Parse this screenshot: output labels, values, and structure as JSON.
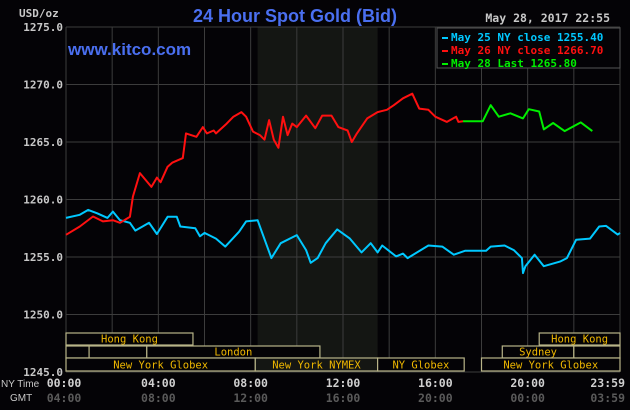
{
  "header": {
    "title": "24 Hour Spot Gold (Bid)",
    "watermark": "www.kitco.com",
    "timestamp": "May 28, 2017 22:55",
    "unit": "USD/oz"
  },
  "colors": {
    "background": "#040306",
    "title": "#4a6ff0",
    "grid": "#3c3c3c",
    "nymex_shade": "#141613",
    "session_border": "#b8b488",
    "session_text": "#f0b800",
    "axis_text": "#c8c8c8",
    "gmt_text": "#5a5a5a"
  },
  "sessions": [
    {
      "label": "Hong Kong",
      "row": 0,
      "start": 0,
      "end": 5.5
    },
    {
      "label": "",
      "row": 1,
      "start": 0,
      "end": 1
    },
    {
      "label": "",
      "row": 1,
      "start": 1,
      "end": 3.5
    },
    {
      "label": "London",
      "row": 1,
      "start": 3.5,
      "end": 11
    },
    {
      "label": "New York Globex",
      "row": 2,
      "start": 0,
      "end": 8.2
    },
    {
      "label": "New York NYMEX",
      "row": 2,
      "start": 8.2,
      "end": 13.5
    },
    {
      "label": "NY Globex",
      "row": 2,
      "start": 13.5,
      "end": 17.25
    },
    {
      "label": "Hong Kong",
      "row": 0,
      "start": 20.5,
      "end": 24
    },
    {
      "label": "Sydney",
      "row": 1,
      "start": 18.9,
      "end": 22
    },
    {
      "label": "",
      "row": 1,
      "start": 22,
      "end": 24
    },
    {
      "label": "New York Globex",
      "row": 2,
      "start": 18,
      "end": 24
    }
  ],
  "time_axis": {
    "ny_label": "NY Time",
    "gmt_label": "GMT",
    "ny_ticks": [
      "00:00",
      "04:00",
      "08:00",
      "12:00",
      "16:00",
      "20:00",
      "23:59"
    ],
    "gmt_ticks": [
      "04:00",
      "08:00",
      "12:00",
      "16:00",
      "20:00",
      "00:00",
      "03:59"
    ]
  },
  "chart_data": {
    "type": "line",
    "title": "24 Hour Spot Gold (Bid)",
    "ylabel": "USD/oz",
    "xlabel": "NY Time",
    "ylim": [
      1245,
      1275
    ],
    "xlim": [
      0,
      24
    ],
    "yticks": [
      "1275.0",
      "1270.0",
      "1265.0",
      "1260.0",
      "1255.0",
      "1250.0",
      "1245.0"
    ],
    "grid": true,
    "shaded_region": {
      "label": "New York NYMEX",
      "start_hour": 8.3,
      "end_hour": 13.5
    },
    "legend_position": "top-right",
    "series": [
      {
        "name": "May 25 NY close 1255.40",
        "color": "#00c8ff",
        "x": [
          0,
          0.6,
          0.96,
          1.35,
          1.8,
          2.03,
          2.34,
          2.77,
          3.0,
          3.6,
          3.94,
          4.4,
          4.8,
          4.95,
          5.6,
          5.8,
          6.0,
          6.5,
          6.9,
          7.5,
          7.8,
          8.3,
          8.9,
          9.3,
          10.0,
          10.4,
          10.6,
          10.9,
          11.25,
          11.75,
          12.3,
          12.8,
          13.2,
          13.5,
          13.7,
          14.3,
          14.6,
          14.8,
          15.7,
          16.3,
          16.8,
          17.3,
          18.2,
          18.4,
          19.0,
          19.4,
          19.75,
          19.8,
          19.9,
          20.3,
          20.7,
          21.4,
          21.7,
          22.1,
          22.7,
          23.1,
          23.4,
          23.9,
          24.0
        ],
        "y": [
          1258.4,
          1258.67,
          1259.1,
          1258.8,
          1258.4,
          1258.95,
          1258.2,
          1257.97,
          1257.3,
          1257.97,
          1257.0,
          1258.5,
          1258.5,
          1257.65,
          1257.5,
          1256.8,
          1257.1,
          1256.6,
          1255.9,
          1257.2,
          1258.1,
          1258.2,
          1254.9,
          1256.2,
          1256.9,
          1255.6,
          1254.5,
          1254.9,
          1256.2,
          1257.4,
          1256.6,
          1255.4,
          1256.2,
          1255.4,
          1256.0,
          1255.05,
          1255.3,
          1254.9,
          1256.0,
          1255.9,
          1255.2,
          1255.55,
          1255.55,
          1255.9,
          1256.0,
          1255.6,
          1254.9,
          1253.6,
          1254.2,
          1255.2,
          1254.2,
          1254.6,
          1254.9,
          1256.5,
          1256.6,
          1257.65,
          1257.7,
          1256.95,
          1257.1
        ]
      },
      {
        "name": "May 26 NY close 1266.70",
        "color": "#ff1010",
        "x": [
          0,
          0.6,
          1.17,
          1.6,
          2.03,
          2.34,
          2.77,
          2.9,
          3.2,
          3.7,
          3.94,
          4.1,
          4.4,
          4.6,
          5.06,
          5.2,
          5.65,
          5.93,
          6.1,
          6.4,
          6.5,
          6.96,
          7.25,
          7.6,
          7.8,
          8.1,
          8.4,
          8.6,
          8.8,
          9.0,
          9.2,
          9.4,
          9.6,
          9.8,
          10.0,
          10.4,
          10.8,
          11.1,
          11.5,
          11.8,
          12.2,
          12.38,
          12.6,
          13.05,
          13.5,
          13.9,
          14.2,
          14.6,
          15.0,
          15.3,
          15.7,
          16.0,
          16.5,
          16.9,
          17.0,
          17.2
        ],
        "y": [
          1256.93,
          1257.65,
          1258.52,
          1258.1,
          1258.2,
          1257.97,
          1258.5,
          1260.25,
          1262.3,
          1261.1,
          1261.9,
          1261.5,
          1262.85,
          1263.2,
          1263.6,
          1265.75,
          1265.45,
          1266.3,
          1265.75,
          1266.0,
          1265.75,
          1266.6,
          1267.2,
          1267.6,
          1267.2,
          1265.9,
          1265.6,
          1265.2,
          1266.9,
          1265.2,
          1264.5,
          1267.2,
          1265.6,
          1266.6,
          1266.3,
          1267.3,
          1266.2,
          1267.3,
          1267.3,
          1266.3,
          1266.0,
          1265.0,
          1265.75,
          1267.05,
          1267.6,
          1267.8,
          1268.2,
          1268.8,
          1269.2,
          1267.9,
          1267.8,
          1267.2,
          1266.75,
          1267.2,
          1266.75,
          1266.8
        ]
      },
      {
        "name": "May 28 Last 1265.80",
        "color": "#00ee00",
        "x": [
          17.2,
          18.05,
          18.4,
          18.75,
          19.25,
          19.8,
          20.05,
          20.5,
          20.7,
          21.1,
          21.6,
          22.3,
          22.8
        ],
        "y": [
          1266.8,
          1266.8,
          1268.2,
          1267.2,
          1267.5,
          1267.05,
          1267.85,
          1267.65,
          1266.1,
          1266.65,
          1265.95,
          1266.7,
          1265.95
        ]
      }
    ]
  }
}
